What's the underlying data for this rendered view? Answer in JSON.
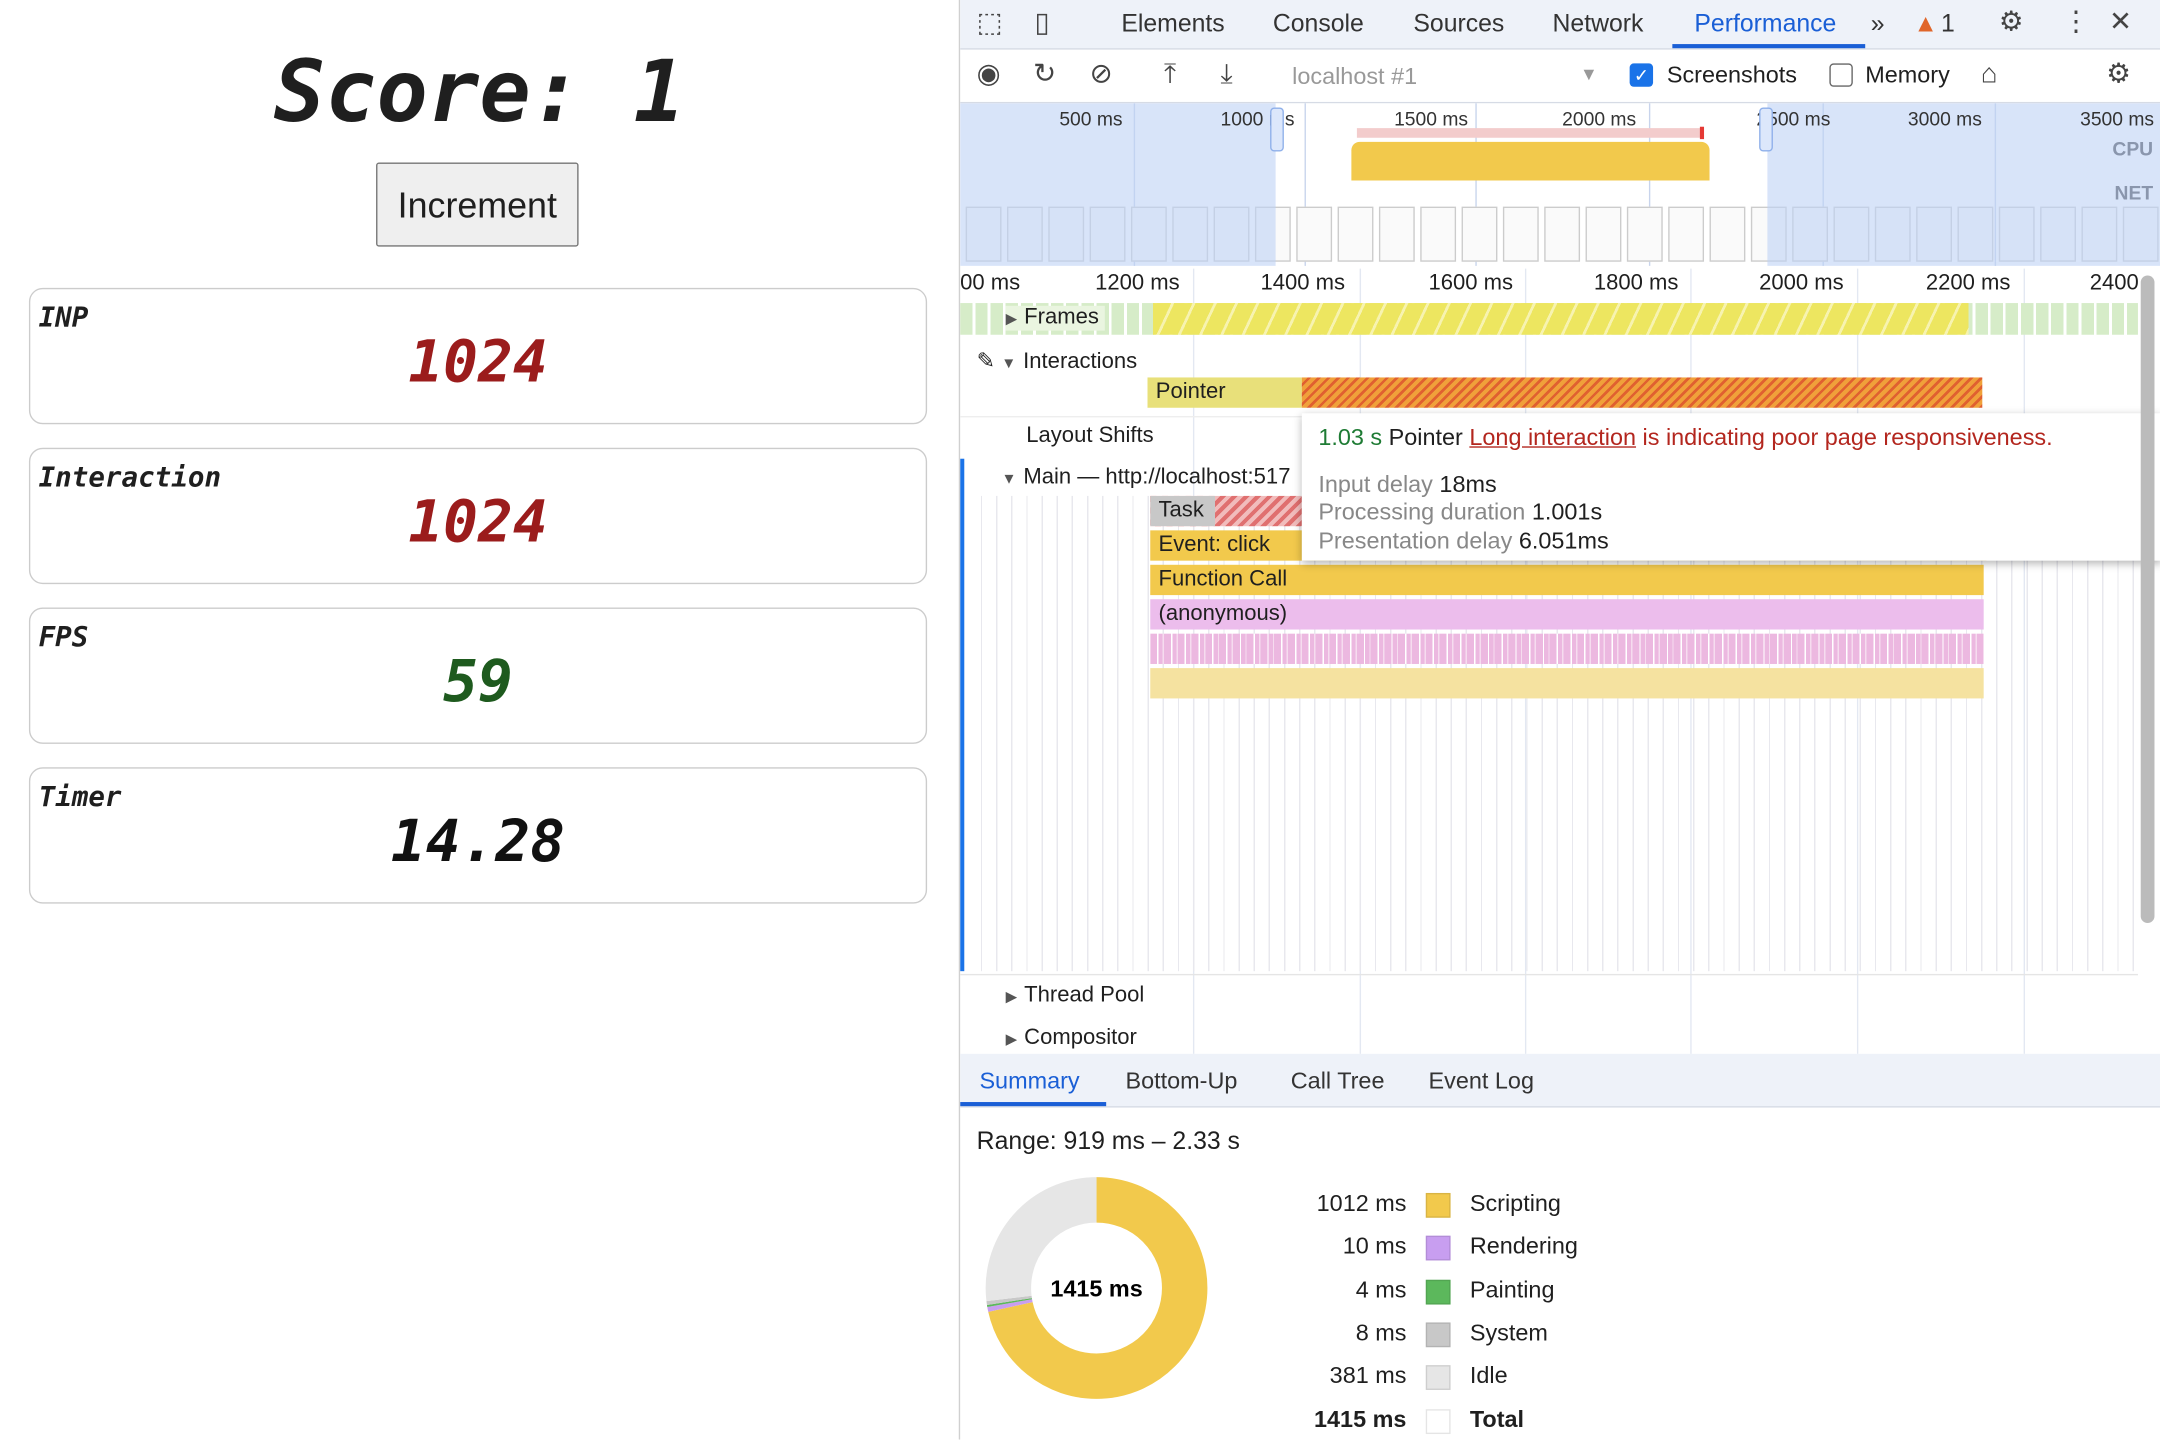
{
  "app": {
    "score_label": "Score: 1",
    "increment_label": "Increment",
    "cards": [
      {
        "label": "INP",
        "value": "1024",
        "color": "#9b1c1c"
      },
      {
        "label": "Interaction",
        "value": "1024",
        "color": "#9b1c1c"
      },
      {
        "label": "FPS",
        "value": "59",
        "color": "#1e5a1e"
      },
      {
        "label": "Timer",
        "value": "14.28",
        "color": "#111111"
      }
    ]
  },
  "devtools": {
    "tabs": [
      "Elements",
      "Console",
      "Sources",
      "Network",
      "Performance"
    ],
    "active_tab": "Performance",
    "more_tabs": "»",
    "warning_count": "1",
    "toolbar": {
      "target": "localhost #1",
      "screenshots_label": "Screenshots",
      "screenshots_checked": true,
      "memory_label": "Memory",
      "memory_checked": false
    },
    "overview": {
      "ticks": [
        "500 ms",
        "1000 ms",
        "1500 ms",
        "2000 ms",
        "2500 ms",
        "3000 ms",
        "3500 ms"
      ],
      "cpu_label": "CPU",
      "net_label": "NET"
    },
    "ruler": [
      "00 ms",
      "1200 ms",
      "1400 ms",
      "1600 ms",
      "1800 ms",
      "2000 ms",
      "2200 ms",
      "2400"
    ],
    "tracks": {
      "frames": "Frames",
      "interactions": "Interactions",
      "pointer": "Pointer",
      "layout_shifts": "Layout Shifts",
      "main": "Main — http://localhost:517",
      "task": "Task",
      "event_click": "Event: click",
      "function_call": "Function Call",
      "anonymous": "(anonymous)",
      "thread_pool": "Thread Pool",
      "compositor": "Compositor"
    },
    "tooltip": {
      "duration": "1.03 s",
      "type": "Pointer",
      "link": "Long interaction",
      "message": " is indicating poor page responsiveness.",
      "input_delay_label": "Input delay",
      "input_delay": "18ms",
      "processing_label": "Processing duration",
      "processing": "1.001s",
      "presentation_label": "Presentation delay",
      "presentation": "6.051ms"
    },
    "bottom_tabs": [
      "Summary",
      "Bottom-Up",
      "Call Tree",
      "Event Log"
    ],
    "summary": {
      "range": "Range: 919 ms – 2.33 s",
      "total_center": "1415 ms",
      "rows": [
        {
          "ms": "1012 ms",
          "value": 1012,
          "name": "Scripting",
          "color": "#f2c94c"
        },
        {
          "ms": "10 ms",
          "value": 10,
          "name": "Rendering",
          "color": "#c89ef0"
        },
        {
          "ms": "4 ms",
          "value": 4,
          "name": "Painting",
          "color": "#5cb85c"
        },
        {
          "ms": "8 ms",
          "value": 8,
          "name": "System",
          "color": "#c8c8c8"
        },
        {
          "ms": "381 ms",
          "value": 381,
          "name": "Idle",
          "color": "#e6e6e6"
        },
        {
          "ms": "1415 ms",
          "value": 1415,
          "name": "Total",
          "color": "#ffffff"
        }
      ]
    }
  }
}
